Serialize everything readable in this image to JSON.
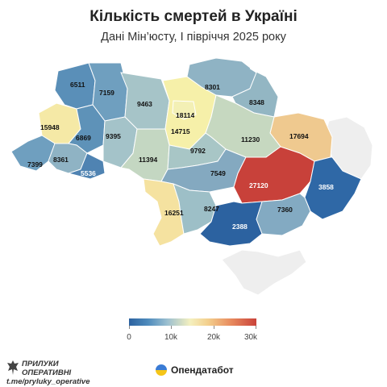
{
  "header": {
    "title": "Кількість смертей в Україні",
    "subtitle": "Дані Мін’юсту, І півріччя 2025 року"
  },
  "regions": [
    {
      "id": "volyn",
      "value": "6511"
    },
    {
      "id": "rivne",
      "value": "7159"
    },
    {
      "id": "zhytomyr",
      "value": "9463"
    },
    {
      "id": "kyiv-oblast",
      "value": "18114"
    },
    {
      "id": "kyiv-city",
      "value": "14715"
    },
    {
      "id": "chernihiv",
      "value": "8301"
    },
    {
      "id": "sumy",
      "value": "8348"
    },
    {
      "id": "kharkiv",
      "value": "17694"
    },
    {
      "id": "poltava",
      "value": "11230"
    },
    {
      "id": "lviv",
      "value": "15948"
    },
    {
      "id": "ternopil",
      "value": "6869"
    },
    {
      "id": "khmelnytskyi",
      "value": "9395"
    },
    {
      "id": "vinnytsia",
      "value": "11394"
    },
    {
      "id": "cherkasy",
      "value": "9792"
    },
    {
      "id": "zakarpattia",
      "value": "7399"
    },
    {
      "id": "ivano-frankivsk",
      "value": "8361"
    },
    {
      "id": "chernivtsi",
      "value": "5536"
    },
    {
      "id": "kirovohrad",
      "value": "7549"
    },
    {
      "id": "dnipro",
      "value": "27120"
    },
    {
      "id": "donetsk",
      "value": "3858"
    },
    {
      "id": "odesa",
      "value": "16251"
    },
    {
      "id": "mykolaiv",
      "value": "8247"
    },
    {
      "id": "zaporizhzhia",
      "value": "7360"
    },
    {
      "id": "kherson",
      "value": "2388"
    },
    {
      "id": "luhansk",
      "value": ""
    },
    {
      "id": "crimea",
      "value": ""
    }
  ],
  "legend": {
    "ticks": [
      "0",
      "10k",
      "20k",
      "30k"
    ],
    "range": [
      0,
      30000
    ]
  },
  "footer": {
    "left_line1": "ПРИЛУКИ ОПЕРАТИВНІ",
    "left_line2": "t.me/pryluky_operative",
    "right": "Опендатабот"
  },
  "colors": {
    "low": "#2c62a0",
    "mid": "#f4f0bf",
    "high": "#c9423a",
    "nodata": "#eeeeee"
  },
  "icons": [
    "eagle-logo-icon",
    "opendatabot-logo-icon"
  ]
}
